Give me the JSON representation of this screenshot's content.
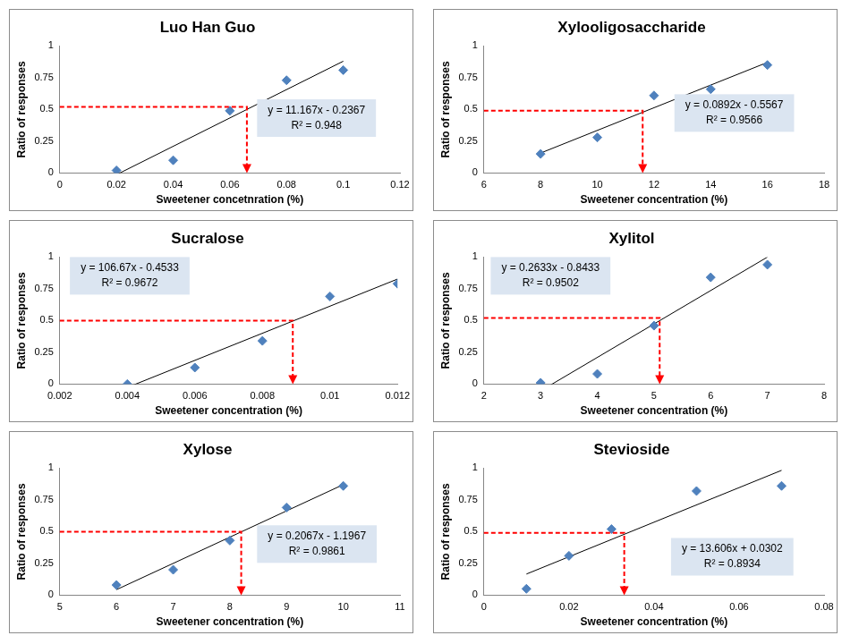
{
  "chart_data": [
    {
      "type": "scatter",
      "title": "Luo Han Guo",
      "x_label": "Sweetener concetnration (%)",
      "y_label": "Ratio of responses",
      "x": [
        0.02,
        0.04,
        0.06,
        0.08,
        0.1
      ],
      "values": [
        0.02,
        0.1,
        0.49,
        0.73,
        0.81
      ],
      "color": "#4f81bd",
      "marker": "diamond",
      "grid": false,
      "xlim": [
        0,
        0.12
      ],
      "xticks": [
        0,
        0.02,
        0.04,
        0.06,
        0.08,
        0.1,
        0.12
      ],
      "ylim": [
        0,
        1
      ],
      "yticks": [
        0,
        0.25,
        0.5,
        0.75,
        1
      ],
      "trendline": {
        "slope": 11.167,
        "intercept": -0.2367,
        "labels": [
          "y = 11.167x - 0.2367",
          "R² = 0.948"
        ]
      },
      "reference": {
        "x": 0.066,
        "y": 0.52
      }
    },
    {
      "type": "scatter",
      "title": "Xylooligosaccharide",
      "x_label": "Sweetener concentration (%)",
      "y_label": "Ratio of responses",
      "x": [
        8,
        10,
        12,
        14,
        16
      ],
      "values": [
        0.15,
        0.28,
        0.61,
        0.66,
        0.85
      ],
      "color": "#4f81bd",
      "marker": "diamond",
      "grid": false,
      "xlim": [
        6,
        18
      ],
      "xticks": [
        6,
        8,
        10,
        12,
        14,
        16,
        18
      ],
      "ylim": [
        0,
        1
      ],
      "yticks": [
        0,
        0.25,
        0.5,
        0.75,
        1
      ],
      "trendline": {
        "slope": 0.0892,
        "intercept": -0.5567,
        "labels": [
          "y = 0.0892x - 0.5567",
          "R² = 0.9566"
        ]
      },
      "reference": {
        "x": 11.6,
        "y": 0.49
      }
    },
    {
      "type": "scatter",
      "title": "Sucralose",
      "x_label": "Sweetener concentration (%)",
      "y_label": "Ratio of responses",
      "x": [
        0.004,
        0.006,
        0.008,
        0.01,
        0.012
      ],
      "values": [
        0.0,
        0.13,
        0.34,
        0.69,
        0.79
      ],
      "color": "#4f81bd",
      "marker": "diamond",
      "grid": false,
      "xlim": [
        0.002,
        0.012
      ],
      "xticks": [
        0.002,
        0.004,
        0.006,
        0.008,
        0.01,
        0.012
      ],
      "ylim": [
        0,
        1
      ],
      "yticks": [
        0,
        0.25,
        0.5,
        0.75,
        1
      ],
      "trendline": {
        "slope": 106.67,
        "intercept": -0.4533,
        "labels": [
          "y = 106.67x - 0.4533",
          "R² = 0.9672"
        ]
      },
      "reference": {
        "x": 0.0089,
        "y": 0.5
      }
    },
    {
      "type": "scatter",
      "title": "Xylitol",
      "x_label": "Sweetener concentration (%)",
      "y_label": "Ratio of responses",
      "x": [
        3,
        4,
        5,
        6,
        7
      ],
      "values": [
        0.01,
        0.08,
        0.46,
        0.84,
        0.94
      ],
      "color": "#4f81bd",
      "marker": "diamond",
      "grid": false,
      "xlim": [
        2,
        8
      ],
      "xticks": [
        2,
        3,
        4,
        5,
        6,
        7,
        8
      ],
      "ylim": [
        0,
        1
      ],
      "yticks": [
        0,
        0.25,
        0.5,
        0.75,
        1
      ],
      "trendline": {
        "slope": 0.2633,
        "intercept": -0.8433,
        "labels": [
          "y = 0.2633x - 0.8433",
          "R² = 0.9502"
        ]
      },
      "reference": {
        "x": 5.1,
        "y": 0.52
      }
    },
    {
      "type": "scatter",
      "title": "Xylose",
      "x_label": "Sweetener concentration (%)",
      "y_label": "Ratio of responses",
      "x": [
        6,
        7,
        8,
        9,
        10
      ],
      "values": [
        0.08,
        0.2,
        0.43,
        0.69,
        0.86
      ],
      "color": "#4f81bd",
      "marker": "diamond",
      "grid": false,
      "xlim": [
        5,
        11
      ],
      "xticks": [
        5,
        6,
        7,
        8,
        9,
        10,
        11
      ],
      "ylim": [
        0,
        1
      ],
      "yticks": [
        0,
        0.25,
        0.5,
        0.75,
        1
      ],
      "trendline": {
        "slope": 0.2067,
        "intercept": -1.1967,
        "labels": [
          "y = 0.2067x - 1.1967",
          "R² = 0.9861"
        ]
      },
      "reference": {
        "x": 8.2,
        "y": 0.5
      }
    },
    {
      "type": "scatter",
      "title": "Stevioside",
      "x_label": "Sweetener concentration (%)",
      "y_label": "Ratio of responses",
      "x": [
        0.01,
        0.02,
        0.03,
        0.05,
        0.07
      ],
      "values": [
        0.05,
        0.31,
        0.52,
        0.82,
        0.86
      ],
      "color": "#4f81bd",
      "marker": "diamond",
      "grid": false,
      "xlim": [
        0,
        0.08
      ],
      "xticks": [
        0,
        0.02,
        0.04,
        0.06,
        0.08
      ],
      "ylim": [
        0,
        1
      ],
      "yticks": [
        0,
        0.25,
        0.5,
        0.75,
        1
      ],
      "trendline": {
        "slope": 13.606,
        "intercept": 0.0302,
        "labels": [
          "y = 13.606x + 0.0302",
          "R² = 0.8934"
        ]
      },
      "reference": {
        "x": 0.033,
        "y": 0.49
      }
    }
  ]
}
